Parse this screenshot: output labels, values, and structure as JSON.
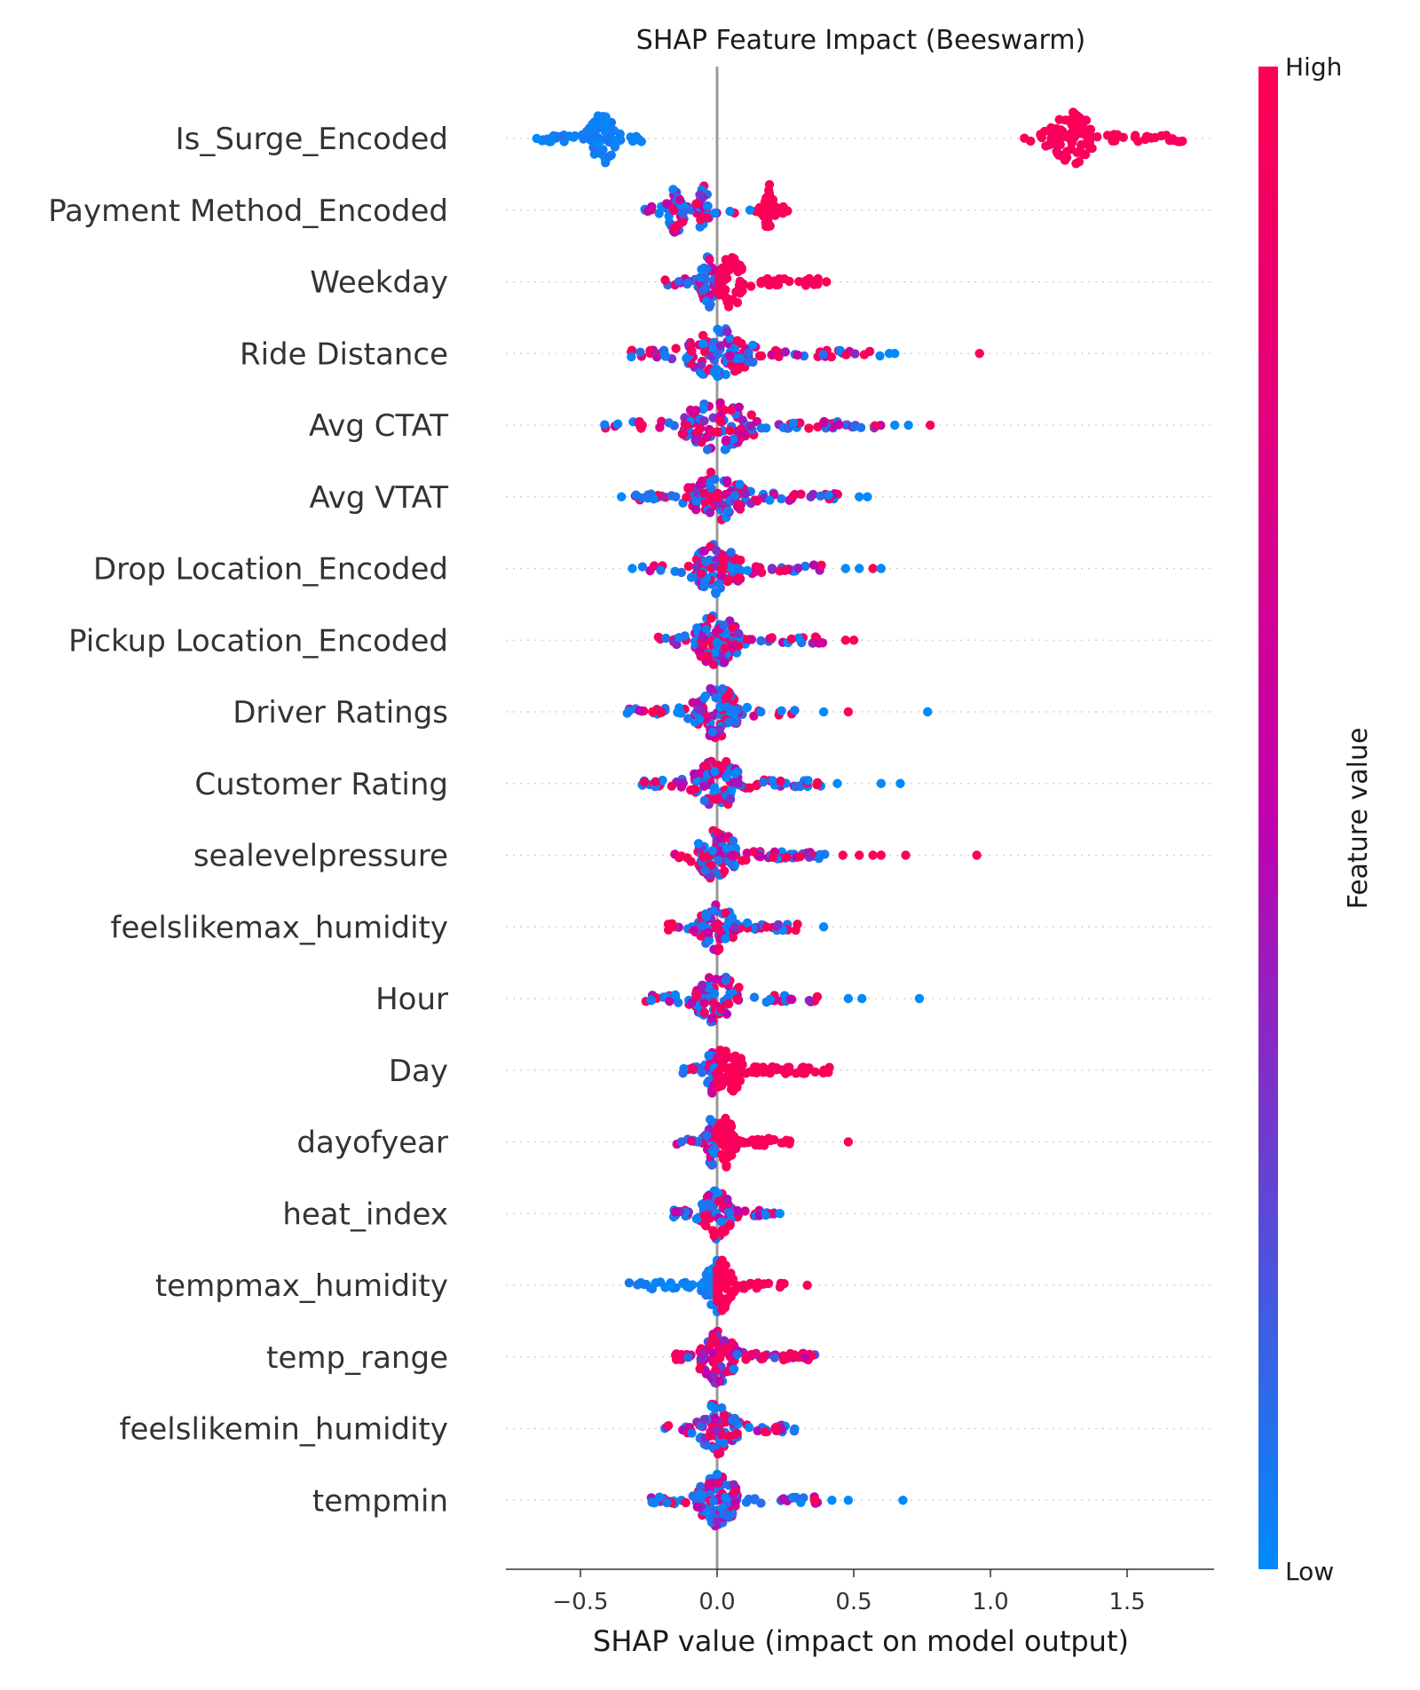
{
  "chart_data": {
    "type": "scatter",
    "subtype": "beeswarm",
    "title": "SHAP Feature Impact (Beeswarm)",
    "xlabel": "SHAP value (impact on model output)",
    "ylabel": "",
    "xlim": [
      -0.78,
      1.83
    ],
    "xticks": [
      -0.5,
      0.0,
      0.5,
      1.0,
      1.5
    ],
    "xtick_labels": [
      "−0.5",
      "0.0",
      "0.5",
      "1.0",
      "1.5"
    ],
    "grid": false,
    "colorbar": {
      "label": "Feature value",
      "high_label": "High",
      "low_label": "Low",
      "high_color": "#ff0052",
      "mid_color": "#c100ae",
      "low_color": "#008afb"
    },
    "features": [
      {
        "name": "Is_Surge_Encoded",
        "groups": [
          {
            "range": [
              -0.65,
              -0.27
            ],
            "peak": -0.42,
            "count": 90,
            "color": "low"
          },
          {
            "range": [
              1.08,
              1.71
            ],
            "peak": 1.3,
            "count": 110,
            "color": "high"
          }
        ],
        "outliers": [
          {
            "x": -0.66,
            "c": "low"
          }
        ]
      },
      {
        "name": "Payment Method_Encoded",
        "groups": [
          {
            "range": [
              -0.27,
              -0.05
            ],
            "peak": -0.15,
            "count": 60,
            "color": "mixlow"
          },
          {
            "range": [
              -0.08,
              0.08
            ],
            "peak": -0.05,
            "count": 25,
            "color": "mix"
          },
          {
            "range": [
              0.14,
              0.26
            ],
            "peak": 0.19,
            "count": 40,
            "color": "high"
          }
        ],
        "outliers": [
          {
            "x": 0.12,
            "c": "low"
          }
        ]
      },
      {
        "name": "Weekday",
        "groups": [
          {
            "range": [
              -0.21,
              0.02
            ],
            "peak": -0.03,
            "count": 60,
            "color": "mixlow"
          },
          {
            "range": [
              0.0,
              0.38
            ],
            "peak": 0.05,
            "count": 80,
            "color": "high"
          }
        ],
        "outliers": [
          {
            "x": 0.4,
            "c": "high"
          }
        ]
      },
      {
        "name": "Ride Distance",
        "groups": [
          {
            "range": [
              -0.33,
              0.6
            ],
            "peak": 0.0,
            "count": 130,
            "color": "mix"
          }
        ],
        "outliers": [
          {
            "x": 0.63,
            "c": "low"
          },
          {
            "x": 0.65,
            "c": "low"
          },
          {
            "x": 0.96,
            "c": "high"
          }
        ]
      },
      {
        "name": "Avg CTAT",
        "groups": [
          {
            "range": [
              -0.42,
              0.6
            ],
            "peak": 0.0,
            "count": 140,
            "color": "mix"
          }
        ],
        "outliers": [
          {
            "x": 0.65,
            "c": "low"
          },
          {
            "x": 0.7,
            "c": "low"
          },
          {
            "x": 0.78,
            "c": "high"
          }
        ]
      },
      {
        "name": "Avg VTAT",
        "groups": [
          {
            "range": [
              -0.3,
              0.45
            ],
            "peak": 0.0,
            "count": 120,
            "color": "mix"
          }
        ],
        "outliers": [
          {
            "x": -0.35,
            "c": "low"
          },
          {
            "x": 0.52,
            "c": "low"
          },
          {
            "x": 0.55,
            "c": "low"
          }
        ]
      },
      {
        "name": "Drop Location_Encoded",
        "groups": [
          {
            "range": [
              -0.28,
              0.4
            ],
            "peak": 0.0,
            "count": 120,
            "color": "mix"
          }
        ],
        "outliers": [
          {
            "x": -0.31,
            "c": "low"
          },
          {
            "x": 0.47,
            "c": "low"
          },
          {
            "x": 0.52,
            "c": "low"
          },
          {
            "x": 0.57,
            "c": "high"
          },
          {
            "x": 0.6,
            "c": "low"
          }
        ]
      },
      {
        "name": "Pickup Location_Encoded",
        "groups": [
          {
            "range": [
              -0.26,
              0.4
            ],
            "peak": 0.0,
            "count": 120,
            "color": "mix"
          }
        ],
        "outliers": [
          {
            "x": 0.47,
            "c": "high"
          },
          {
            "x": 0.5,
            "c": "high"
          }
        ]
      },
      {
        "name": "Driver Ratings",
        "groups": [
          {
            "range": [
              -0.33,
              0.33
            ],
            "peak": 0.0,
            "count": 120,
            "color": "mix"
          }
        ],
        "outliers": [
          {
            "x": 0.39,
            "c": "low"
          },
          {
            "x": 0.48,
            "c": "high"
          },
          {
            "x": 0.77,
            "c": "low"
          }
        ]
      },
      {
        "name": "Customer Rating",
        "groups": [
          {
            "range": [
              -0.29,
              0.38
            ],
            "peak": 0.0,
            "count": 120,
            "color": "mix"
          }
        ],
        "outliers": [
          {
            "x": 0.44,
            "c": "low"
          },
          {
            "x": 0.6,
            "c": "low"
          },
          {
            "x": 0.67,
            "c": "low"
          }
        ]
      },
      {
        "name": "sealevelpressure",
        "groups": [
          {
            "range": [
              -0.16,
              0.4
            ],
            "peak": 0.0,
            "count": 120,
            "color": "mix"
          }
        ],
        "outliers": [
          {
            "x": 0.46,
            "c": "high"
          },
          {
            "x": 0.52,
            "c": "high"
          },
          {
            "x": 0.57,
            "c": "high"
          },
          {
            "x": 0.6,
            "c": "high"
          },
          {
            "x": 0.69,
            "c": "high"
          },
          {
            "x": 0.95,
            "c": "high"
          }
        ]
      },
      {
        "name": "feelslikemax_humidity",
        "groups": [
          {
            "range": [
              -0.18,
              0.3
            ],
            "peak": 0.0,
            "count": 100,
            "color": "mix"
          }
        ],
        "outliers": [
          {
            "x": 0.39,
            "c": "low"
          }
        ]
      },
      {
        "name": "Hour",
        "groups": [
          {
            "range": [
              -0.27,
              0.37
            ],
            "peak": 0.0,
            "count": 110,
            "color": "mix"
          }
        ],
        "outliers": [
          {
            "x": 0.48,
            "c": "low"
          },
          {
            "x": 0.53,
            "c": "low"
          },
          {
            "x": 0.74,
            "c": "low"
          }
        ]
      },
      {
        "name": "Day",
        "groups": [
          {
            "range": [
              -0.13,
              0.0
            ],
            "peak": -0.02,
            "count": 40,
            "color": "mixlow"
          },
          {
            "range": [
              0.0,
              0.42
            ],
            "peak": 0.04,
            "count": 90,
            "color": "high"
          }
        ],
        "outliers": []
      },
      {
        "name": "dayofyear",
        "groups": [
          {
            "range": [
              -0.15,
              0.0
            ],
            "peak": -0.02,
            "count": 40,
            "color": "mixlow"
          },
          {
            "range": [
              0.0,
              0.27
            ],
            "peak": 0.03,
            "count": 70,
            "color": "high"
          }
        ],
        "outliers": [
          {
            "x": 0.48,
            "c": "high"
          }
        ]
      },
      {
        "name": "heat_index",
        "groups": [
          {
            "range": [
              -0.19,
              0.21
            ],
            "peak": 0.0,
            "count": 100,
            "color": "mix"
          }
        ],
        "outliers": [
          {
            "x": 0.23,
            "c": "low"
          }
        ]
      },
      {
        "name": "tempmax_humidity",
        "groups": [
          {
            "range": [
              -0.33,
              0.0
            ],
            "peak": 0.0,
            "count": 60,
            "color": "low"
          },
          {
            "range": [
              0.0,
              0.25
            ],
            "peak": 0.02,
            "count": 70,
            "color": "high"
          }
        ],
        "outliers": [
          {
            "x": 0.33,
            "c": "high"
          }
        ]
      },
      {
        "name": "temp_range",
        "groups": [
          {
            "range": [
              -0.17,
              0.36
            ],
            "peak": 0.0,
            "count": 120,
            "color": "mixhigh"
          }
        ],
        "outliers": []
      },
      {
        "name": "feelslikemin_humidity",
        "groups": [
          {
            "range": [
              -0.21,
              0.29
            ],
            "peak": 0.0,
            "count": 100,
            "color": "mix"
          }
        ],
        "outliers": []
      },
      {
        "name": "tempmin",
        "groups": [
          {
            "range": [
              -0.26,
              0.37
            ],
            "peak": 0.0,
            "count": 120,
            "color": "mixlow"
          }
        ],
        "outliers": [
          {
            "x": 0.42,
            "c": "low"
          },
          {
            "x": 0.48,
            "c": "low"
          },
          {
            "x": 0.68,
            "c": "low"
          }
        ]
      }
    ]
  }
}
